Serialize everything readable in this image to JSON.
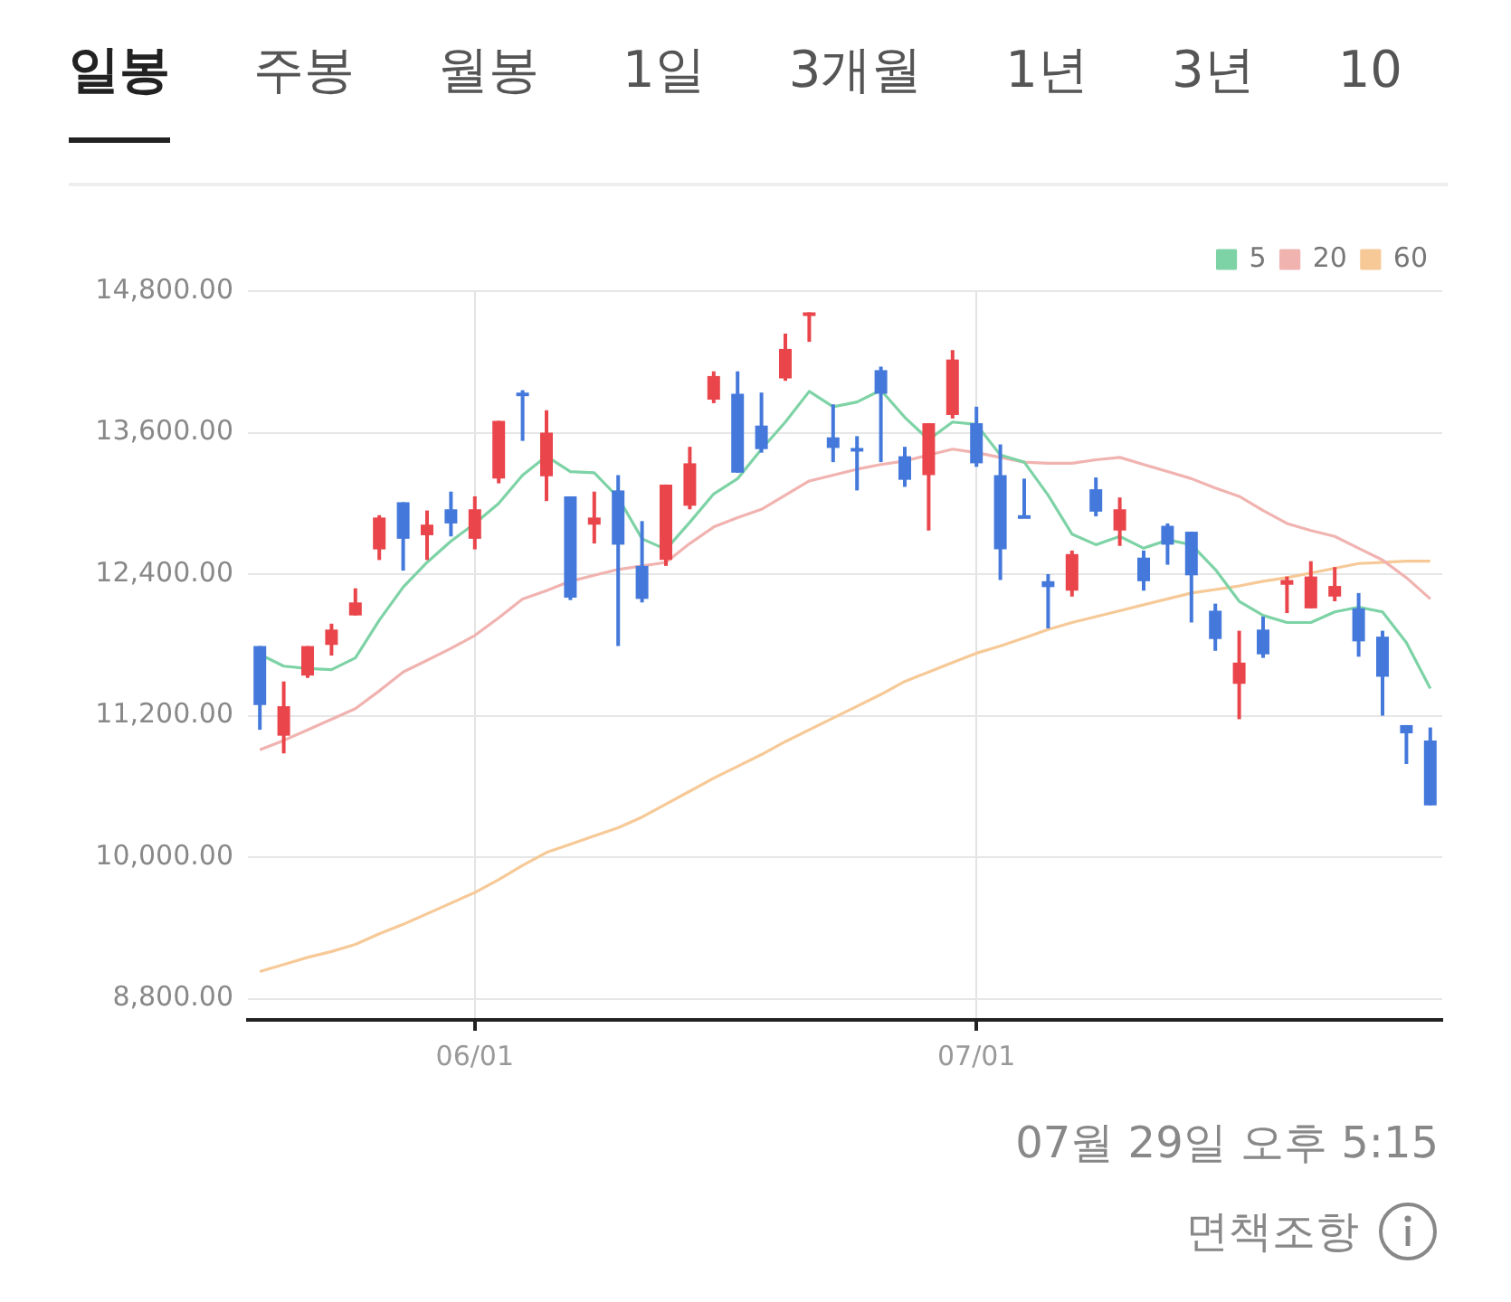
{
  "chart_data": {
    "type": "candlestick",
    "categories": [
      null,
      null,
      null,
      null,
      null,
      null,
      null,
      null,
      null,
      "06/01",
      null,
      null,
      null,
      null,
      null,
      null,
      null,
      null,
      null,
      null,
      null,
      null,
      null,
      null,
      null,
      null,
      null,
      null,
      null,
      null,
      "07/01",
      null,
      null,
      null,
      null,
      null,
      null,
      null,
      null,
      null,
      null,
      null,
      null,
      null,
      null,
      null,
      null,
      null,
      null,
      null
    ],
    "ohlc": [
      [
        11790,
        11790,
        11080,
        11290
      ],
      [
        11030,
        11490,
        10880,
        11280
      ],
      [
        11540,
        11790,
        11520,
        11790
      ],
      [
        11800,
        11980,
        11710,
        11930
      ],
      [
        12050,
        12280,
        12050,
        12160
      ],
      [
        12610,
        12900,
        12520,
        12880
      ],
      [
        13010,
        13010,
        12430,
        12700
      ],
      [
        12730,
        12940,
        12520,
        12820
      ],
      [
        12950,
        13100,
        12720,
        12830
      ],
      [
        12700,
        13060,
        12610,
        12950
      ],
      [
        13210,
        13700,
        13170,
        13700
      ],
      [
        13940,
        13960,
        13530,
        13910
      ],
      [
        13230,
        13790,
        13020,
        13600
      ],
      [
        13060,
        13060,
        12180,
        12200
      ],
      [
        12820,
        13100,
        12660,
        12880
      ],
      [
        13110,
        13240,
        11790,
        12650
      ],
      [
        12470,
        12850,
        12160,
        12190
      ],
      [
        12520,
        13160,
        12470,
        13160
      ],
      [
        12980,
        13480,
        12950,
        13340
      ],
      [
        13880,
        14120,
        13850,
        14080
      ],
      [
        13930,
        14120,
        13260,
        13260
      ],
      [
        13660,
        13940,
        13430,
        13460
      ],
      [
        14060,
        14440,
        14040,
        14310
      ],
      [
        14590,
        14620,
        14370,
        14620
      ],
      [
        13560,
        13840,
        13350,
        13470
      ],
      [
        13470,
        13570,
        13110,
        13450
      ],
      [
        14130,
        14160,
        13350,
        13930
      ],
      [
        13400,
        13480,
        13140,
        13200
      ],
      [
        13240,
        13680,
        12770,
        13680
      ],
      [
        13750,
        14300,
        13720,
        14220
      ],
      [
        13680,
        13820,
        13310,
        13340
      ],
      [
        13240,
        13500,
        12350,
        12610
      ],
      [
        12900,
        13210,
        12880,
        12880
      ],
      [
        12340,
        12400,
        11940,
        12290
      ],
      [
        12260,
        12600,
        12210,
        12570
      ],
      [
        13120,
        13220,
        12890,
        12930
      ],
      [
        12770,
        13050,
        12640,
        12950
      ],
      [
        12540,
        12600,
        12260,
        12340
      ],
      [
        12810,
        12830,
        12480,
        12650
      ],
      [
        12760,
        12760,
        11990,
        12390
      ],
      [
        12090,
        12150,
        11750,
        11850
      ],
      [
        11470,
        11920,
        11170,
        11650
      ],
      [
        11930,
        12040,
        11690,
        11720
      ],
      [
        12310,
        12380,
        12070,
        12350
      ],
      [
        12110,
        12510,
        12110,
        12380
      ],
      [
        12210,
        12460,
        12170,
        12300
      ],
      [
        12110,
        12240,
        11700,
        11830
      ],
      [
        11870,
        11920,
        11200,
        11530
      ],
      [
        11120,
        11120,
        10790,
        11050
      ],
      [
        10990,
        11100,
        10440,
        10440
      ]
    ],
    "colors": [
      "#4479db",
      "#e9454b",
      "#e9454b",
      "#e9454b",
      "#e9454b",
      "#e9454b",
      "#4479db",
      "#e9454b",
      "#4479db",
      "#e9454b",
      "#e9454b",
      "#4479db",
      "#e9454b",
      "#4479db",
      "#e9454b",
      "#4479db",
      "#4479db",
      "#e9454b",
      "#e9454b",
      "#e9454b",
      "#4479db",
      "#4479db",
      "#e9454b",
      "#e9454b",
      "#4479db",
      "#4479db",
      "#4479db",
      "#4479db",
      "#e9454b",
      "#e9454b",
      "#4479db",
      "#4479db",
      "#4479db",
      "#4479db",
      "#e9454b",
      "#4479db",
      "#e9454b",
      "#4479db",
      "#4479db",
      "#4479db",
      "#4479db",
      "#e9454b",
      "#4479db",
      "#e9454b",
      "#e9454b",
      "#e9454b",
      "#4479db",
      "#4479db",
      "#4479db",
      "#4479db"
    ],
    "series": [
      {
        "name": "5",
        "type": "line",
        "color": "#7ed3a6",
        "values": [
          11720,
          11620,
          11600,
          11590,
          11690,
          12010,
          12290,
          12500,
          12680,
          12830,
          13000,
          13240,
          13400,
          13270,
          13260,
          13050,
          12700,
          12610,
          12840,
          13080,
          13210,
          13460,
          13690,
          13950,
          13820,
          13860,
          13960,
          13730,
          13540,
          13690,
          13670,
          13410,
          13350,
          13070,
          12740,
          12650,
          12720,
          12620,
          12690,
          12650,
          12440,
          12170,
          12050,
          11990,
          11990,
          12080,
          12120,
          12080,
          11820,
          11430
        ]
      },
      {
        "name": "20",
        "type": "line",
        "color": "#f0b3b0",
        "values": [
          10910,
          10990,
          11080,
          11170,
          11260,
          11410,
          11570,
          11670,
          11770,
          11880,
          12030,
          12190,
          12260,
          12340,
          12390,
          12440,
          12470,
          12500,
          12660,
          12800,
          12880,
          12950,
          13070,
          13190,
          13240,
          13290,
          13330,
          13360,
          13410,
          13460,
          13430,
          13390,
          13350,
          13340,
          13340,
          13370,
          13390,
          13330,
          13270,
          13210,
          13130,
          13060,
          12940,
          12830,
          12770,
          12720,
          12620,
          12520,
          12370,
          12190
        ]
      },
      {
        "name": "60",
        "type": "line",
        "color": "#f6c997",
        "values": [
          9030,
          9090,
          9150,
          9200,
          9260,
          9350,
          9430,
          9520,
          9610,
          9700,
          9810,
          9930,
          10040,
          10110,
          10180,
          10250,
          10340,
          10450,
          10560,
          10670,
          10770,
          10870,
          10980,
          11080,
          11180,
          11280,
          11380,
          11490,
          11570,
          11650,
          11730,
          11790,
          11860,
          11930,
          11990,
          12040,
          12090,
          12140,
          12190,
          12240,
          12270,
          12300,
          12340,
          12370,
          12410,
          12450,
          12490,
          12500,
          12510,
          12510
        ]
      }
    ],
    "ylim": [
      8620,
      14800
    ],
    "yticks": [
      {
        "value": 8800,
        "label": "8,800.00"
      },
      {
        "value": 10000,
        "label": "10,000.00"
      },
      {
        "value": 11200,
        "label": "11,200.00"
      },
      {
        "value": 12400,
        "label": "12,400.00"
      },
      {
        "value": 13600,
        "label": "13,600.00"
      },
      {
        "value": 14800,
        "label": "14,800.00"
      }
    ],
    "grid": true,
    "legend": "top right",
    "marker": "none",
    "annotations": [
      "일봉",
      "주봉",
      "월봉",
      "1일",
      "3개월",
      "1년",
      "3년",
      "10",
      "07월 29일 오후 5:15",
      "면책조항"
    ]
  }
}
